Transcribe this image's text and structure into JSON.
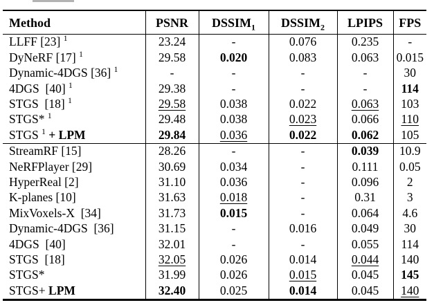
{
  "colors": {
    "text": "#000000",
    "background": "#ffffff",
    "rule": "#000000",
    "artifact": "#b3b3b3"
  },
  "table": {
    "columns": [
      {
        "label": "Method",
        "align": "left"
      },
      {
        "label": "PSNR"
      },
      {
        "label": "DSSIM",
        "sub": "1"
      },
      {
        "label": "DSSIM",
        "sub": "2"
      },
      {
        "label": "LPIPS"
      },
      {
        "label": "FPS"
      }
    ],
    "sections": [
      {
        "rows": [
          {
            "method": [
              {
                "t": "LLFF [23] "
              },
              {
                "t": "1",
                "sup": true
              }
            ],
            "cells": [
              {
                "v": "23.24"
              },
              {
                "v": "-"
              },
              {
                "v": "0.076"
              },
              {
                "v": "0.235"
              },
              {
                "v": "-"
              }
            ]
          },
          {
            "method": [
              {
                "t": "DyNeRF [17] "
              },
              {
                "t": "1",
                "sup": true
              }
            ],
            "cells": [
              {
                "v": "29.58"
              },
              {
                "v": "0.020",
                "b": true
              },
              {
                "v": "0.083"
              },
              {
                "v": "0.063"
              },
              {
                "v": "0.015"
              }
            ]
          },
          {
            "method": [
              {
                "t": "Dynamic-4DGS [36] "
              },
              {
                "t": "1",
                "sup": true
              }
            ],
            "cells": [
              {
                "v": "-"
              },
              {
                "v": "-"
              },
              {
                "v": "-"
              },
              {
                "v": "-"
              },
              {
                "v": "30"
              }
            ]
          },
          {
            "method": [
              {
                "t": "4DGS  [40] "
              },
              {
                "t": "1",
                "sup": true
              }
            ],
            "cells": [
              {
                "v": "29.38"
              },
              {
                "v": "-"
              },
              {
                "v": "-"
              },
              {
                "v": "-"
              },
              {
                "v": "114",
                "b": true
              }
            ]
          },
          {
            "method": [
              {
                "t": "STGS  [18] "
              },
              {
                "t": "1",
                "sup": true
              }
            ],
            "cells": [
              {
                "v": "29.58",
                "u": true
              },
              {
                "v": "0.038"
              },
              {
                "v": "0.022"
              },
              {
                "v": "0.063",
                "u": true
              },
              {
                "v": "103"
              }
            ]
          },
          {
            "method": [
              {
                "t": "STGS* "
              },
              {
                "t": "1",
                "sup": true
              }
            ],
            "cells": [
              {
                "v": "29.48"
              },
              {
                "v": "0.038"
              },
              {
                "v": "0.023",
                "u": true
              },
              {
                "v": "0.066"
              },
              {
                "v": "110",
                "u": true
              }
            ]
          },
          {
            "method": [
              {
                "t": "STGS "
              },
              {
                "t": "1",
                "sup": true
              },
              {
                "t": " "
              },
              {
                "t": "+ LPM",
                "b": true
              }
            ],
            "cells": [
              {
                "v": "29.84",
                "b": true
              },
              {
                "v": "0.036",
                "u": true
              },
              {
                "v": "0.022",
                "b": true
              },
              {
                "v": "0.062",
                "b": true
              },
              {
                "v": "105"
              }
            ]
          }
        ]
      },
      {
        "rows": [
          {
            "method": [
              {
                "t": "StreamRF [15]"
              }
            ],
            "cells": [
              {
                "v": "28.26"
              },
              {
                "v": "-"
              },
              {
                "v": "-"
              },
              {
                "v": "0.039",
                "b": true
              },
              {
                "v": "10.9"
              }
            ]
          },
          {
            "method": [
              {
                "t": "NeRFPlayer [29]"
              }
            ],
            "cells": [
              {
                "v": "30.69"
              },
              {
                "v": "0.034"
              },
              {
                "v": "-"
              },
              {
                "v": "0.111"
              },
              {
                "v": "0.05"
              }
            ]
          },
          {
            "method": [
              {
                "t": "HyperReal [2]"
              }
            ],
            "cells": [
              {
                "v": "31.10"
              },
              {
                "v": "0.036"
              },
              {
                "v": "-"
              },
              {
                "v": "0.096"
              },
              {
                "v": "2"
              }
            ]
          },
          {
            "method": [
              {
                "t": "K-planes [10]"
              }
            ],
            "cells": [
              {
                "v": "31.63"
              },
              {
                "v": "0.018",
                "u": true
              },
              {
                "v": "-"
              },
              {
                "v": "0.31"
              },
              {
                "v": "3"
              }
            ]
          },
          {
            "method": [
              {
                "t": "MixVoxels-X  [34]"
              }
            ],
            "cells": [
              {
                "v": "31.73"
              },
              {
                "v": "0.015",
                "b": true
              },
              {
                "v": "-"
              },
              {
                "v": "0.064"
              },
              {
                "v": "4.6"
              }
            ]
          },
          {
            "method": [
              {
                "t": "Dynamic-4DGS  [36]"
              }
            ],
            "cells": [
              {
                "v": "31.15"
              },
              {
                "v": "-"
              },
              {
                "v": "0.016"
              },
              {
                "v": "0.049"
              },
              {
                "v": "30"
              }
            ]
          },
          {
            "method": [
              {
                "t": "4DGS  [40]"
              }
            ],
            "cells": [
              {
                "v": "32.01"
              },
              {
                "v": "-"
              },
              {
                "v": "-"
              },
              {
                "v": "0.055"
              },
              {
                "v": "114"
              }
            ]
          },
          {
            "method": [
              {
                "t": "STGS  [18]"
              }
            ],
            "cells": [
              {
                "v": "32.05",
                "u": true
              },
              {
                "v": "0.026"
              },
              {
                "v": "0.014"
              },
              {
                "v": "0.044",
                "u": true
              },
              {
                "v": "140"
              }
            ]
          },
          {
            "method": [
              {
                "t": "STGS*"
              }
            ],
            "cells": [
              {
                "v": "31.99"
              },
              {
                "v": "0.026"
              },
              {
                "v": "0.015",
                "u": true
              },
              {
                "v": "0.045"
              },
              {
                "v": "145",
                "b": true
              }
            ]
          },
          {
            "method": [
              {
                "t": "STGS+ "
              },
              {
                "t": "LPM",
                "b": true
              }
            ],
            "cells": [
              {
                "v": "32.40",
                "b": true
              },
              {
                "v": "0.025"
              },
              {
                "v": "0.014",
                "b": true
              },
              {
                "v": "0.045"
              },
              {
                "v": "140",
                "u": true
              }
            ]
          }
        ]
      }
    ]
  }
}
